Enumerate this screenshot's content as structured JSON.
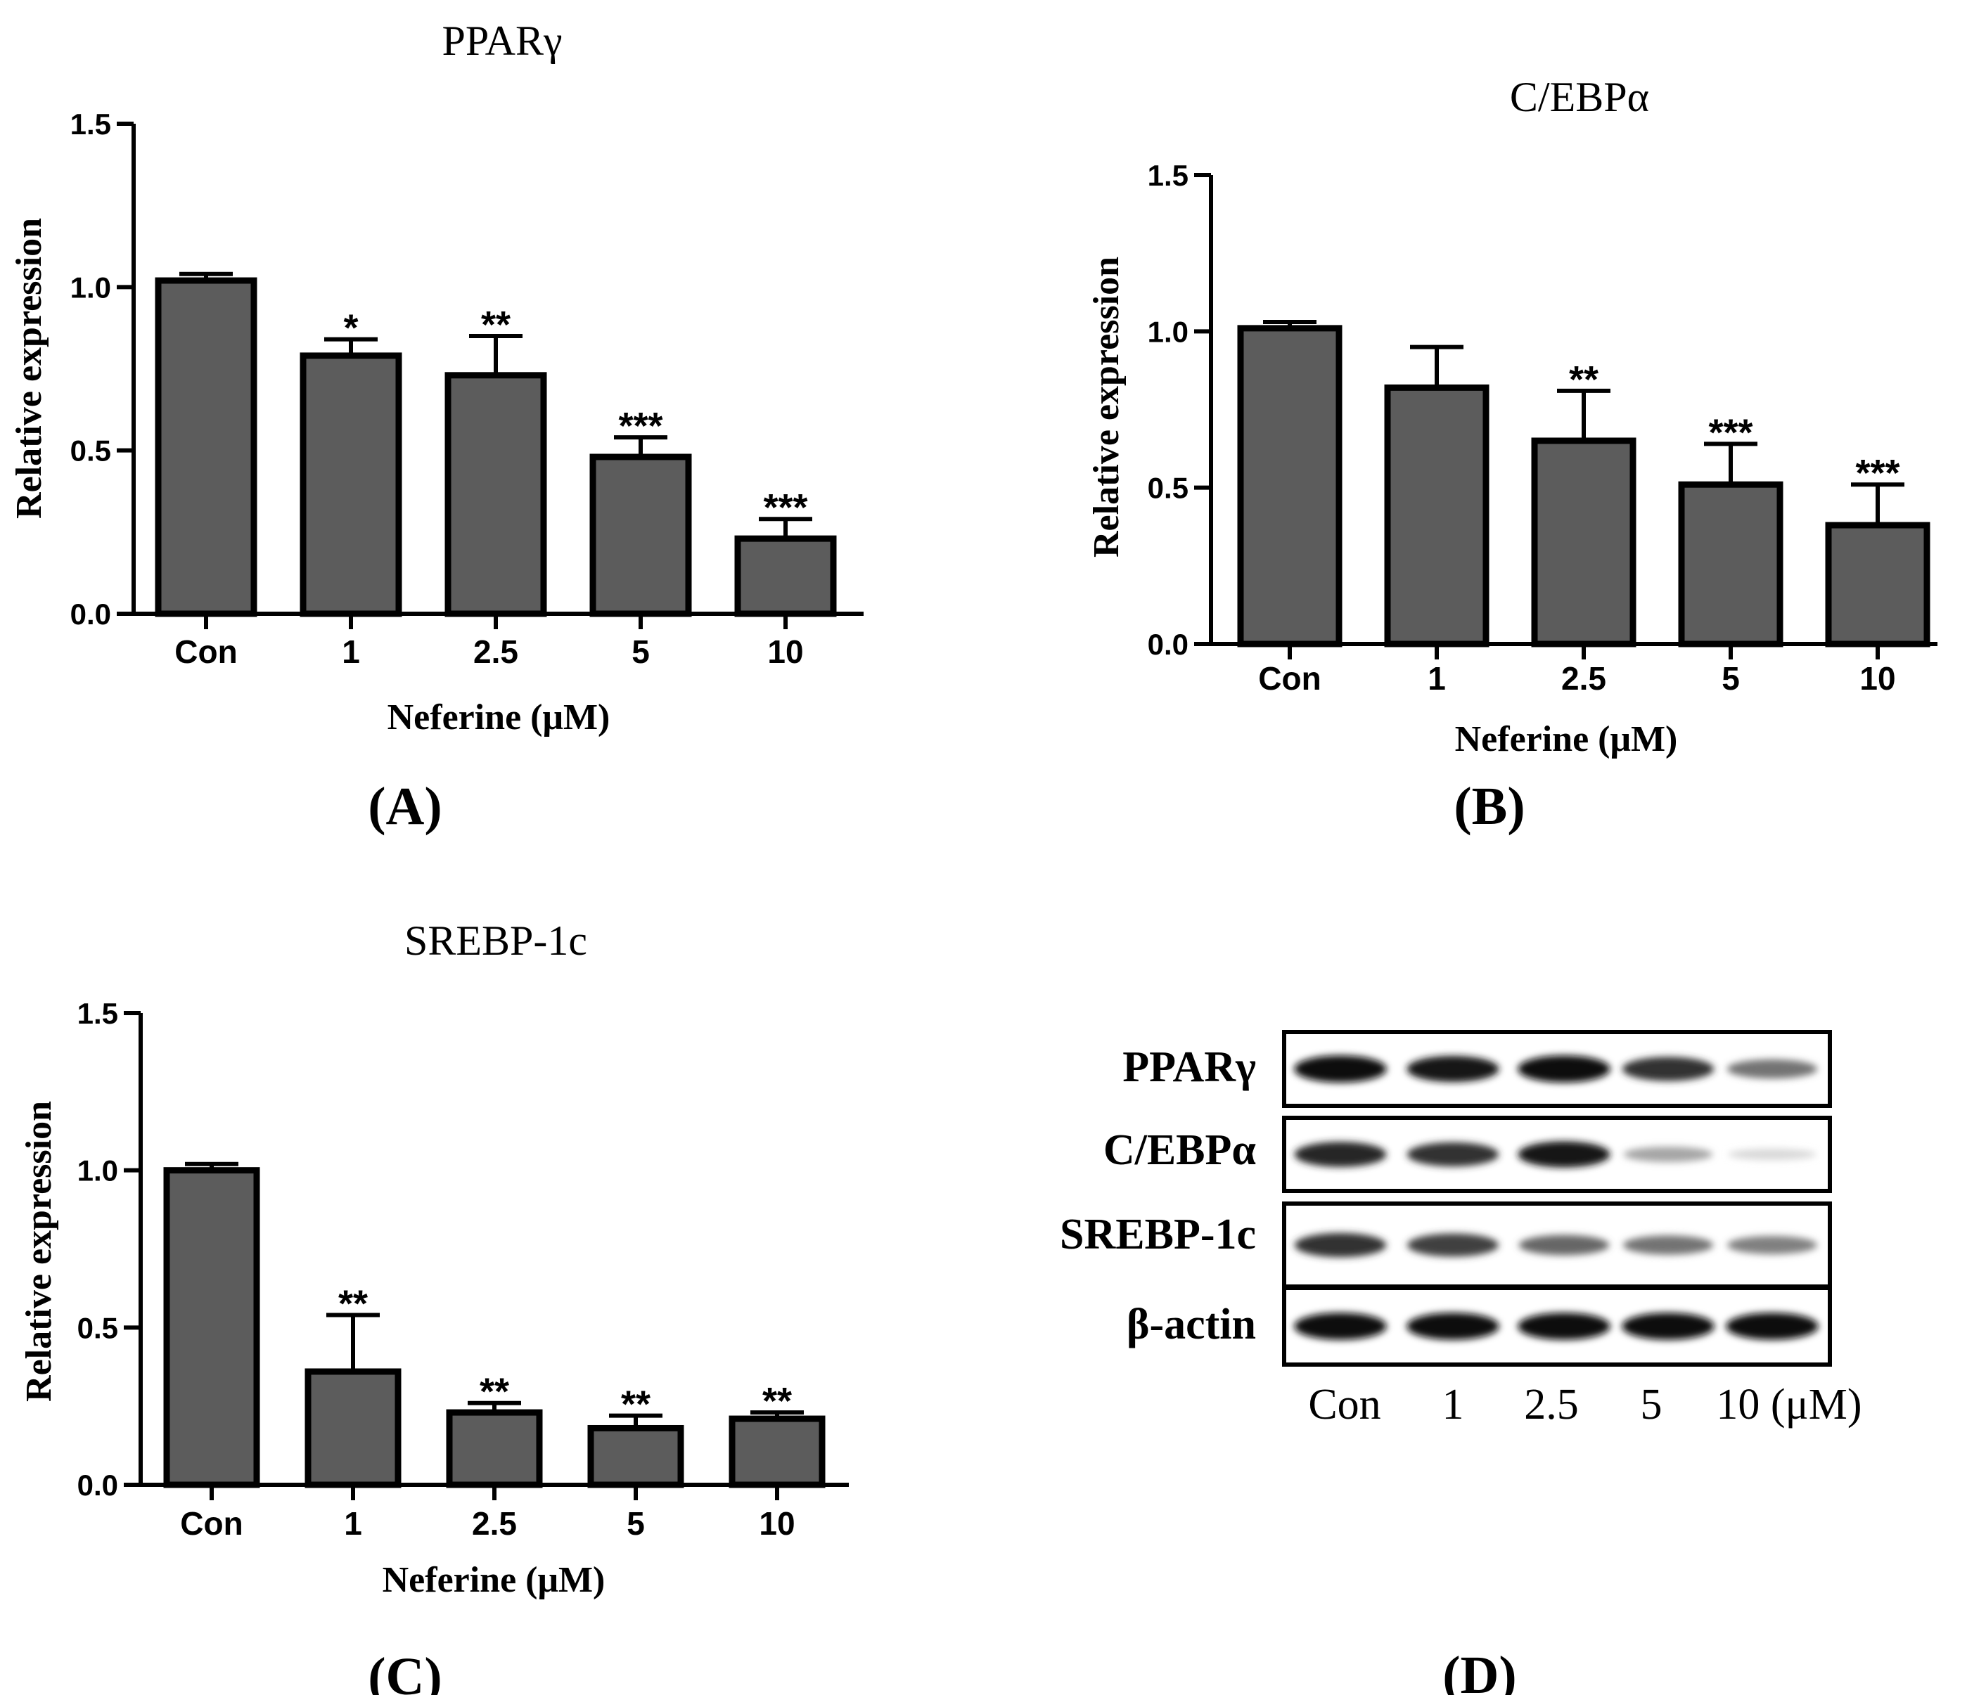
{
  "chart_data": [
    {
      "panel": "A",
      "type": "bar",
      "title": "PPARγ",
      "ylabel": "Relative expression",
      "xlabel": "Neferine (μM)",
      "categories": [
        "Con",
        "1",
        "2.5",
        "5",
        "10"
      ],
      "values": [
        1.02,
        0.79,
        0.73,
        0.48,
        0.23
      ],
      "errors": [
        0.02,
        0.05,
        0.12,
        0.06,
        0.06
      ],
      "significance": [
        "",
        "*",
        "**",
        "***",
        "***"
      ],
      "ylim": [
        0,
        1.5
      ],
      "yticks": [
        "0.0",
        "0.5",
        "1.0",
        "1.5"
      ],
      "panel_label": "(A)"
    },
    {
      "panel": "B",
      "type": "bar",
      "title": "C/EBPα",
      "ylabel": "Relative expression",
      "xlabel": "Neferine (μM)",
      "categories": [
        "Con",
        "1",
        "2.5",
        "5",
        "10"
      ],
      "values": [
        1.01,
        0.82,
        0.65,
        0.51,
        0.38
      ],
      "errors": [
        0.02,
        0.13,
        0.16,
        0.13,
        0.13
      ],
      "significance": [
        "",
        "",
        "**",
        "***",
        "***"
      ],
      "ylim": [
        0,
        1.5
      ],
      "yticks": [
        "0.0",
        "0.5",
        "1.0",
        "1.5"
      ],
      "panel_label": "(B)"
    },
    {
      "panel": "C",
      "type": "bar",
      "title": "SREBP-1c",
      "ylabel": "Relative expression",
      "xlabel": "Neferine (μM)",
      "categories": [
        "Con",
        "1",
        "2.5",
        "5",
        "10"
      ],
      "values": [
        1.0,
        0.36,
        0.23,
        0.18,
        0.21
      ],
      "errors": [
        0.02,
        0.18,
        0.03,
        0.04,
        0.02
      ],
      "significance": [
        "",
        "**",
        "**",
        "**",
        "**"
      ],
      "ylim": [
        0,
        1.5
      ],
      "yticks": [
        "0.0",
        "0.5",
        "1.0",
        "1.5"
      ],
      "panel_label": "(C)"
    }
  ],
  "western_blot": {
    "panel_label": "(D)",
    "rows": [
      {
        "label": "PPARγ",
        "intensities": [
          0.95,
          0.9,
          0.95,
          0.8,
          0.55
        ]
      },
      {
        "label": "C/EBPα",
        "intensities": [
          0.85,
          0.8,
          0.9,
          0.35,
          0.15
        ]
      },
      {
        "label": "SREBP-1c",
        "intensities": [
          0.8,
          0.75,
          0.6,
          0.55,
          0.5
        ]
      },
      {
        "label": "β-actin",
        "intensities": [
          0.95,
          0.95,
          0.95,
          0.95,
          0.95
        ]
      }
    ],
    "lanes": [
      "Con",
      "1",
      "2.5",
      "5",
      "10 (μM)"
    ]
  }
}
